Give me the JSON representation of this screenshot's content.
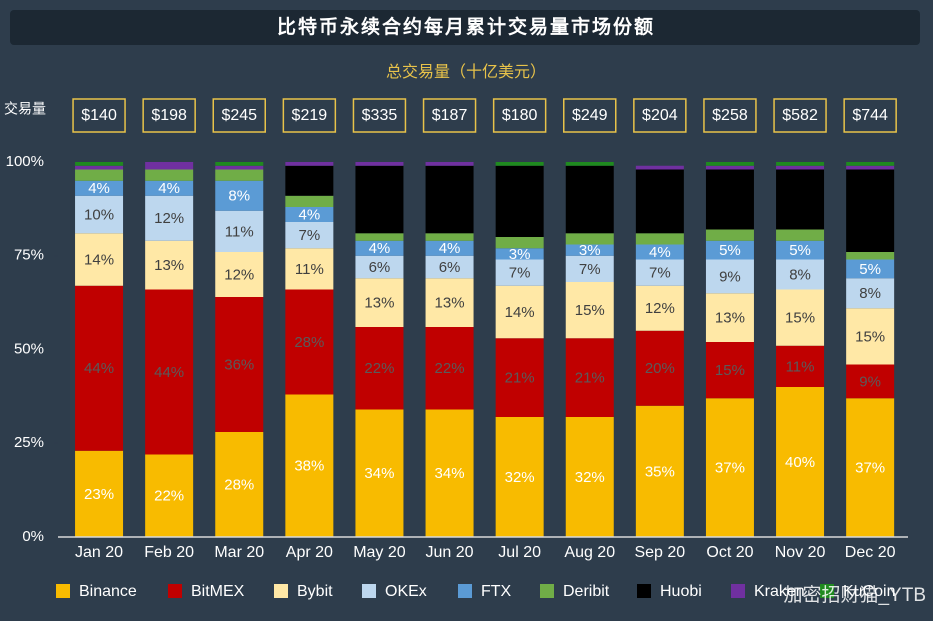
{
  "chart_data": {
    "type": "stacked_bar_100",
    "title": "比特币永续合约每月累计交易量市场份额",
    "subtitle": "总交易量（十亿美元）",
    "totals_label": "交易量",
    "watermark": "加密招财猫_YTB",
    "categories": [
      "Jan 20",
      "Feb 20",
      "Mar 20",
      "Apr 20",
      "May 20",
      "Jun 20",
      "Jul 20",
      "Aug 20",
      "Sep 20",
      "Oct 20",
      "Nov 20",
      "Dec 20"
    ],
    "totals": {
      "values": [
        140,
        198,
        245,
        219,
        335,
        187,
        180,
        249,
        204,
        258,
        582,
        744
      ],
      "value_labels": [
        "$140",
        "$198",
        "$245",
        "$219",
        "$335",
        "$187",
        "$180",
        "$249",
        "$204",
        "$258",
        "$582",
        "$744"
      ]
    },
    "ylim": [
      0,
      100
    ],
    "yticks": [
      {
        "value": 0,
        "label": "0%"
      },
      {
        "value": 25,
        "label": "25%"
      },
      {
        "value": 50,
        "label": "50%"
      },
      {
        "value": 75,
        "label": "75%"
      },
      {
        "value": 100,
        "label": "100%"
      }
    ],
    "series": [
      {
        "name": "Binance",
        "color": "#f8bb00",
        "label_color": "#ffffff",
        "values": [
          23,
          22,
          28,
          38,
          34,
          34,
          32,
          32,
          35,
          37,
          40,
          37
        ],
        "value_labels": [
          "23%",
          "22%",
          "28%",
          "38%",
          "34%",
          "34%",
          "32%",
          "32%",
          "35%",
          "37%",
          "40%",
          "37%"
        ]
      },
      {
        "name": "BitMEX",
        "color": "#c00000",
        "label_color": "#5a5a5a",
        "values": [
          44,
          44,
          36,
          28,
          22,
          22,
          21,
          21,
          20,
          15,
          11,
          9
        ],
        "value_labels": [
          "44%",
          "44%",
          "36%",
          "28%",
          "22%",
          "22%",
          "21%",
          "21%",
          "20%",
          "15%",
          "11%",
          "9%"
        ]
      },
      {
        "name": "Bybit",
        "color": "#ffe8a6",
        "label_color": "#404040",
        "values": [
          14,
          13,
          12,
          11,
          13,
          13,
          14,
          15,
          12,
          13,
          15,
          15
        ],
        "value_labels": [
          "14%",
          "13%",
          "12%",
          "11%",
          "13%",
          "13%",
          "14%",
          "15%",
          "12%",
          "13%",
          "15%",
          "15%"
        ]
      },
      {
        "name": "OKEx",
        "color": "#bdd7ee",
        "label_color": "#404040",
        "values": [
          10,
          12,
          11,
          7,
          6,
          6,
          7,
          7,
          7,
          9,
          8,
          8
        ],
        "value_labels": [
          "10%",
          "12%",
          "11%",
          "7%",
          "6%",
          "6%",
          "7%",
          "7%",
          "7%",
          "9%",
          "8%",
          "8%"
        ]
      },
      {
        "name": "FTX",
        "color": "#5b9bd5",
        "label_color": "#ffffff",
        "values": [
          4,
          4,
          8,
          4,
          4,
          4,
          3,
          3,
          4,
          5,
          5,
          5
        ],
        "value_labels": [
          "4%",
          "4%",
          "8%",
          "4%",
          "4%",
          "4%",
          "3%",
          "3%",
          "4%",
          "5%",
          "5%",
          "5%"
        ]
      },
      {
        "name": "Deribit",
        "color": "#70ad47",
        "label_color": "#ffffff",
        "values": [
          3,
          3,
          3,
          3,
          2,
          2,
          3,
          3,
          3,
          3,
          3,
          2
        ]
      },
      {
        "name": "Huobi",
        "color": "#000000",
        "label_color": "#ffffff",
        "values": [
          0,
          0,
          0,
          8,
          18,
          18,
          19,
          18,
          17,
          16,
          16,
          22
        ]
      },
      {
        "name": "Kraken",
        "color": "#7030a0",
        "label_color": "#ffffff",
        "values": [
          1,
          2,
          1,
          1,
          1,
          1,
          0,
          0,
          1,
          1,
          1,
          1
        ]
      },
      {
        "name": "KuCoin",
        "color": "#1f8a1f",
        "label_color": "#ffffff",
        "values": [
          1,
          0,
          1,
          0,
          0,
          0,
          1,
          1,
          0,
          1,
          1,
          1
        ]
      }
    ]
  }
}
